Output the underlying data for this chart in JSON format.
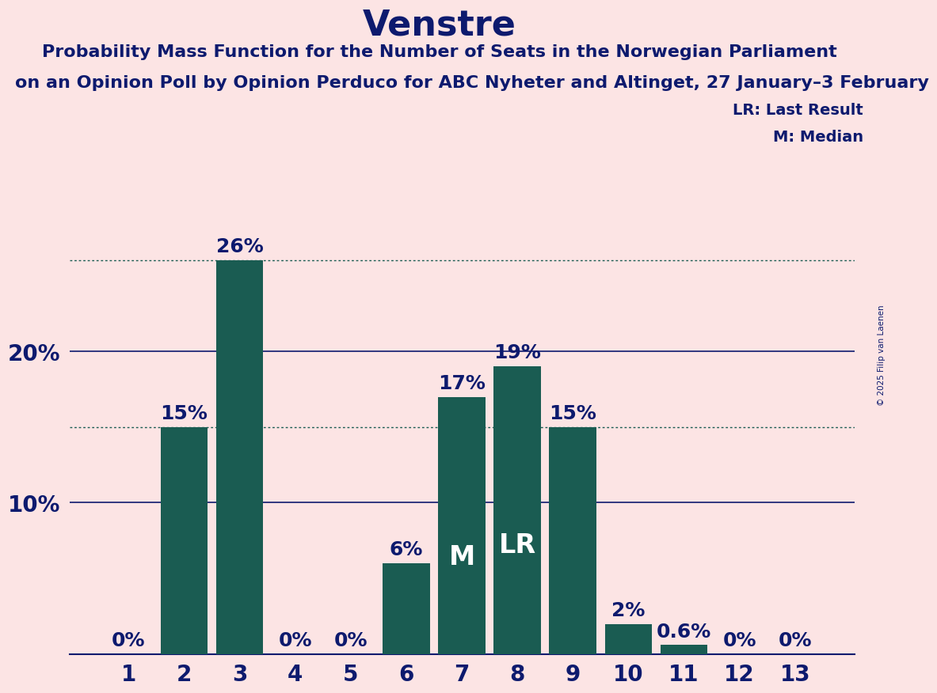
{
  "title": "Venstre",
  "subtitle1": "Probability Mass Function for the Number of Seats in the Norwegian Parliament",
  "subtitle2": "on an Opinion Poll by Opinion Perduco for ABC Nyheter and Altinget, 27 January–3 February",
  "copyright": "© 2025 Filip van Laenen",
  "categories": [
    1,
    2,
    3,
    4,
    5,
    6,
    7,
    8,
    9,
    10,
    11,
    12,
    13
  ],
  "values": [
    0,
    15,
    26,
    0,
    0,
    6,
    17,
    19,
    15,
    2,
    0.6,
    0,
    0
  ],
  "labels": [
    "0%",
    "15%",
    "26%",
    "0%",
    "0%",
    "6%",
    "17%",
    "19%",
    "15%",
    "2%",
    "0.6%",
    "0%",
    "0%"
  ],
  "bar_color": "#1a5c52",
  "background_color": "#fce4e4",
  "text_color": "#0d1a6e",
  "median_bar": 7,
  "last_result_bar": 8,
  "legend_lr": "LR: Last Result",
  "legend_m": "M: Median",
  "bar_label_color_white": "#ffffff",
  "dotted_hlines": [
    15,
    26
  ],
  "dotted_hline_color": "#1a5c52",
  "solid_hlines": [
    10,
    20
  ],
  "solid_hline_color": "#0d1a6e",
  "ylim": [
    0,
    28
  ],
  "title_fontsize": 32,
  "subtitle_fontsize": 16,
  "axis_fontsize": 20,
  "bar_label_fontsize": 18,
  "bar_inner_label_fontsize": 24
}
